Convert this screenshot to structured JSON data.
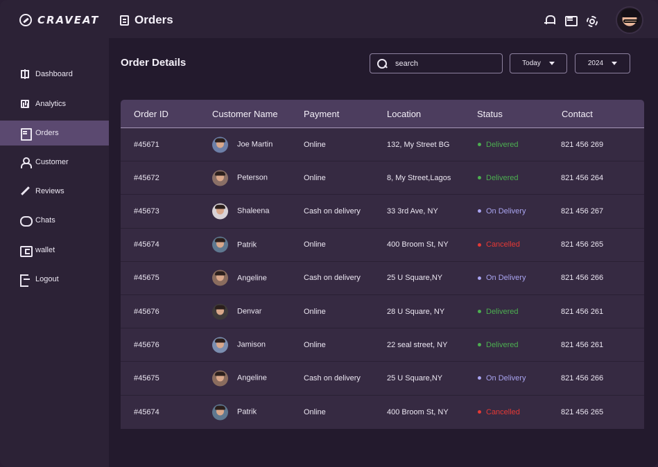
{
  "app": {
    "brand": "CRAVEAT",
    "page_heading": "Orders"
  },
  "sidebar": {
    "items": [
      {
        "label": "Dashboard",
        "icon": "dashboard-icon",
        "active": false
      },
      {
        "label": "Analytics",
        "icon": "analytics-icon",
        "active": false
      },
      {
        "label": "Orders",
        "icon": "orders-icon",
        "active": true
      },
      {
        "label": "Customer",
        "icon": "customer-icon",
        "active": false
      },
      {
        "label": "Reviews",
        "icon": "reviews-icon",
        "active": false
      },
      {
        "label": "Chats",
        "icon": "chat-icon",
        "active": false
      },
      {
        "label": "wallet",
        "icon": "wallet-icon",
        "active": false
      },
      {
        "label": "Logout",
        "icon": "logout-icon",
        "active": false
      }
    ]
  },
  "toolbar": {
    "title": "Order Details",
    "search_placeholder": "search",
    "period": "Today",
    "year": "2024"
  },
  "colors": {
    "accent": "#5b4970",
    "delivered": "#4caf50",
    "on_delivery": "#a9a4f0",
    "cancelled": "#e53935"
  },
  "table": {
    "headers": [
      "Order ID",
      "Customer Name",
      "Payment",
      "Location",
      "Status",
      "Contact"
    ],
    "rows": [
      {
        "id": "#45671",
        "customer": "Joe Martin",
        "payment": "Online",
        "location": "132, My Street BG",
        "status": "Delivered",
        "contact": "821 456 269"
      },
      {
        "id": "#45672",
        "customer": "Peterson",
        "payment": "Online",
        "location": "8, My Street,Lagos",
        "status": "Delivered",
        "contact": "821 456 264"
      },
      {
        "id": "#45673",
        "customer": "Shaleena",
        "payment": "Cash on delivery",
        "location": "33 3rd Ave, NY",
        "status": "On Delivery",
        "contact": "821 456 267"
      },
      {
        "id": "#45674",
        "customer": "Patrik",
        "payment": "Online",
        "location": "400 Broom St, NY",
        "status": "Cancelled",
        "contact": "821 456 265"
      },
      {
        "id": "#45675",
        "customer": "Angeline",
        "payment": "Cash on delivery",
        "location": "25 U Square,NY",
        "status": "On Delivery",
        "contact": "821 456 266"
      },
      {
        "id": "#45676",
        "customer": "Denvar",
        "payment": "Online",
        "location": "28 U Square, NY",
        "status": "Delivered",
        "contact": "821 456 261"
      },
      {
        "id": "#45676",
        "customer": "Jamison",
        "payment": "Online",
        "location": "22 seal street, NY",
        "status": "Delivered",
        "contact": "821 456 261"
      },
      {
        "id": "#45675",
        "customer": "Angeline",
        "payment": "Cash on delivery",
        "location": "25 U Square,NY",
        "status": "On Delivery",
        "contact": "821 456 266"
      },
      {
        "id": "#45674",
        "customer": "Patrik",
        "payment": "Online",
        "location": "400 Broom St, NY",
        "status": "Cancelled",
        "contact": "821 456 265"
      }
    ]
  }
}
